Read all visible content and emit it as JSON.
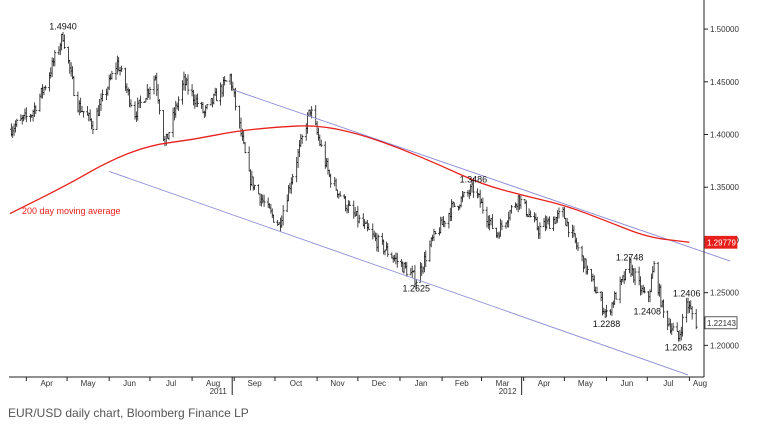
{
  "caption": "EUR/USD daily chart, Bloomberg Finance LP",
  "chart_data": {
    "type": "candlestick",
    "title": "",
    "xlabel": "",
    "ylabel": "",
    "ylim": [
      1.17,
      1.52
    ],
    "yticks": [
      "1.50000",
      "1.45000",
      "1.40000",
      "1.35000",
      "1.30000",
      "1.25000",
      "1.20000"
    ],
    "yticks_values": [
      1.5,
      1.45,
      1.4,
      1.35,
      1.3,
      1.25,
      1.2
    ],
    "x_months": [
      "Apr",
      "May",
      "Jun",
      "Jul",
      "Aug",
      "Sep",
      "Oct",
      "Nov",
      "Dec",
      "Jan",
      "Feb",
      "Mar",
      "Apr",
      "May",
      "Jun",
      "Jul",
      "Aug"
    ],
    "x_years": [
      {
        "label": "2011",
        "after_month_index": 5
      },
      {
        "label": "2012",
        "after_month_index": 12
      }
    ],
    "grid": false,
    "price_path": [
      {
        "d": "2011-03-20",
        "v": 1.405
      },
      {
        "d": "2011-04-05",
        "v": 1.42
      },
      {
        "d": "2011-04-15",
        "v": 1.447
      },
      {
        "d": "2011-04-28",
        "v": 1.494
      },
      {
        "d": "2011-05-08",
        "v": 1.43
      },
      {
        "d": "2011-05-20",
        "v": 1.41
      },
      {
        "d": "2011-06-07",
        "v": 1.468
      },
      {
        "d": "2011-06-20",
        "v": 1.42
      },
      {
        "d": "2011-07-05",
        "v": 1.455
      },
      {
        "d": "2011-07-12",
        "v": 1.39
      },
      {
        "d": "2011-07-26",
        "v": 1.45
      },
      {
        "d": "2011-08-10",
        "v": 1.42
      },
      {
        "d": "2011-08-29",
        "v": 1.455
      },
      {
        "d": "2011-09-12",
        "v": 1.36
      },
      {
        "d": "2011-09-25",
        "v": 1.33
      },
      {
        "d": "2011-10-04",
        "v": 1.3145
      },
      {
        "d": "2011-10-27",
        "v": 1.424
      },
      {
        "d": "2011-11-10",
        "v": 1.36
      },
      {
        "d": "2011-11-24",
        "v": 1.33
      },
      {
        "d": "2011-12-14",
        "v": 1.3
      },
      {
        "d": "2012-01-13",
        "v": 1.2625
      },
      {
        "d": "2012-01-25",
        "v": 1.3
      },
      {
        "d": "2012-02-08",
        "v": 1.33
      },
      {
        "d": "2012-02-24",
        "v": 1.3486
      },
      {
        "d": "2012-03-12",
        "v": 1.305
      },
      {
        "d": "2012-03-28",
        "v": 1.34
      },
      {
        "d": "2012-04-12",
        "v": 1.31
      },
      {
        "d": "2012-04-30",
        "v": 1.325
      },
      {
        "d": "2012-05-18",
        "v": 1.27
      },
      {
        "d": "2012-06-01",
        "v": 1.2288
      },
      {
        "d": "2012-06-18",
        "v": 1.2748
      },
      {
        "d": "2012-07-01",
        "v": 1.2408
      },
      {
        "d": "2012-07-06",
        "v": 1.275
      },
      {
        "d": "2012-07-13",
        "v": 1.23
      },
      {
        "d": "2012-07-24",
        "v": 1.2063
      },
      {
        "d": "2012-07-30",
        "v": 1.2406
      },
      {
        "d": "2012-08-06",
        "v": 1.2214
      }
    ],
    "moving_average": {
      "name": "200 day moving average",
      "color": "#e8201c",
      "points": [
        {
          "d": "2011-03-20",
          "v": 1.325
        },
        {
          "d": "2011-05-01",
          "v": 1.352
        },
        {
          "d": "2011-06-01",
          "v": 1.375
        },
        {
          "d": "2011-07-01",
          "v": 1.39
        },
        {
          "d": "2011-08-01",
          "v": 1.395
        },
        {
          "d": "2011-09-01",
          "v": 1.403
        },
        {
          "d": "2011-10-01",
          "v": 1.407
        },
        {
          "d": "2011-11-01",
          "v": 1.409
        },
        {
          "d": "2011-12-01",
          "v": 1.401
        },
        {
          "d": "2012-01-01",
          "v": 1.387
        },
        {
          "d": "2012-02-01",
          "v": 1.37
        },
        {
          "d": "2012-03-01",
          "v": 1.353
        },
        {
          "d": "2012-04-01",
          "v": 1.342
        },
        {
          "d": "2012-05-01",
          "v": 1.333
        },
        {
          "d": "2012-06-01",
          "v": 1.318
        },
        {
          "d": "2012-07-01",
          "v": 1.3025
        },
        {
          "d": "2012-08-01",
          "v": 1.2978
        }
      ]
    },
    "channel_lines": [
      {
        "name": "upper",
        "color": "#8c8cd8",
        "from": {
          "d": "2011-09-01",
          "v": 1.442
        },
        "to": {
          "d": "2012-08-31",
          "v": 1.28
        }
      },
      {
        "name": "lower",
        "color": "#8c8cd8",
        "from": {
          "d": "2011-06-01",
          "v": 1.365
        },
        "to": {
          "d": "2012-07-31",
          "v": 1.172
        }
      }
    ],
    "annotations": [
      {
        "text": "1.4940",
        "d": "2011-04-28",
        "v": 1.494,
        "pos": "above"
      },
      {
        "text": "1.3486",
        "d": "2012-02-24",
        "v": 1.3486,
        "pos": "above"
      },
      {
        "text": "1.2625",
        "d": "2012-01-13",
        "v": 1.2625,
        "pos": "below"
      },
      {
        "text": "1.2748",
        "d": "2012-06-18",
        "v": 1.2748,
        "pos": "above"
      },
      {
        "text": "1.2288",
        "d": "2012-06-01",
        "v": 1.2288,
        "pos": "below"
      },
      {
        "text": "1.2408",
        "d": "2012-07-01",
        "v": 1.2408,
        "pos": "below"
      },
      {
        "text": "1.2406",
        "d": "2012-07-30",
        "v": 1.2406,
        "pos": "above"
      },
      {
        "text": "1.2063",
        "d": "2012-07-24",
        "v": 1.2063,
        "pos": "below"
      }
    ],
    "last_value_tags": [
      {
        "text": "1.29779",
        "v": 1.29779,
        "color": "#e8201c"
      },
      {
        "text": "1.22143",
        "v": 1.22143,
        "color": "#333333"
      }
    ],
    "price_color": "#1a1a1a",
    "legend_position": "on-chart, left, beside moving average line"
  }
}
